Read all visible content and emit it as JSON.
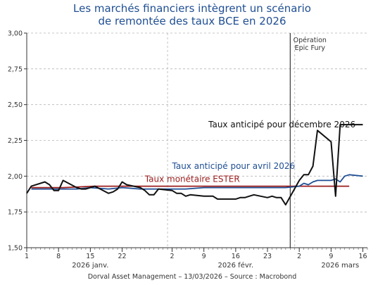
{
  "chart_data": {
    "type": "line",
    "title_lines": [
      "Les marchés financiers intègrent un scénario",
      "de remontée des taux BCE en 2026"
    ],
    "footer": "Dorval Asset Management – 13/03/2026 –    Source : Macrobond",
    "x_range": [
      "2026-01-01",
      "2026-03-17"
    ],
    "x_ticks": [
      {
        "date": "2026-01-01",
        "label": "1"
      },
      {
        "date": "2026-01-08",
        "label": "8"
      },
      {
        "date": "2026-01-15",
        "label": "15"
      },
      {
        "date": "2026-01-22",
        "label": "22"
      },
      {
        "date": "2026-02-02",
        "label": "2"
      },
      {
        "date": "2026-02-09",
        "label": "9"
      },
      {
        "date": "2026-02-16",
        "label": "16"
      },
      {
        "date": "2026-02-23",
        "label": "23"
      },
      {
        "date": "2026-03-02",
        "label": "2"
      },
      {
        "date": "2026-03-09",
        "label": "9"
      },
      {
        "date": "2026-03-16",
        "label": "16"
      }
    ],
    "month_labels": [
      {
        "date": "2026-01-15",
        "label": "2026 janv."
      },
      {
        "date": "2026-02-16",
        "label": "2026 févr."
      },
      {
        "date": "2026-03-11",
        "label": "2026 mars"
      }
    ],
    "month_separators": [
      "2026-02-01",
      "2026-03-01"
    ],
    "ylim": [
      1.5,
      3.0
    ],
    "y_ticks": [
      "1,50",
      "1,75",
      "2,00",
      "2,25",
      "2,50",
      "2,75",
      "3,00"
    ],
    "grid": true,
    "event": {
      "date": "2026-02-28",
      "label_lines": [
        "Opération",
        "Epic Fury"
      ]
    },
    "series": [
      {
        "name": "Taux monétaire ESTER",
        "color": "#9b1c1c",
        "label_anchor": {
          "date": "2026-01-27",
          "value": 1.96
        },
        "points": [
          [
            "2026-01-02",
            1.92
          ],
          [
            "2026-01-09",
            1.92
          ],
          [
            "2026-01-16",
            1.93
          ],
          [
            "2026-01-23",
            1.93
          ],
          [
            "2026-01-30",
            1.93
          ],
          [
            "2026-02-06",
            1.93
          ],
          [
            "2026-02-13",
            1.93
          ],
          [
            "2026-02-20",
            1.93
          ],
          [
            "2026-02-27",
            1.93
          ],
          [
            "2026-03-06",
            1.93
          ],
          [
            "2026-03-13",
            1.93
          ]
        ]
      },
      {
        "name": "Taux anticipé pour avril 2026",
        "color": "#1f4e93",
        "label_anchor": {
          "date": "2026-02-02",
          "value": 2.05
        },
        "points": [
          [
            "2026-01-02",
            1.91
          ],
          [
            "2026-01-05",
            1.91
          ],
          [
            "2026-01-08",
            1.91
          ],
          [
            "2026-01-12",
            1.91
          ],
          [
            "2026-01-15",
            1.92
          ],
          [
            "2026-01-19",
            1.91
          ],
          [
            "2026-01-22",
            1.92
          ],
          [
            "2026-01-26",
            1.91
          ],
          [
            "2026-01-29",
            1.91
          ],
          [
            "2026-02-02",
            1.91
          ],
          [
            "2026-02-05",
            1.91
          ],
          [
            "2026-02-09",
            1.92
          ],
          [
            "2026-02-12",
            1.92
          ],
          [
            "2026-02-16",
            1.92
          ],
          [
            "2026-02-19",
            1.92
          ],
          [
            "2026-02-23",
            1.92
          ],
          [
            "2026-02-26",
            1.92
          ],
          [
            "2026-02-27",
            1.92
          ],
          [
            "2026-03-02",
            1.93
          ],
          [
            "2026-03-03",
            1.95
          ],
          [
            "2026-03-04",
            1.94
          ],
          [
            "2026-03-05",
            1.96
          ],
          [
            "2026-03-06",
            1.97
          ],
          [
            "2026-03-09",
            1.97
          ],
          [
            "2026-03-10",
            1.98
          ],
          [
            "2026-03-11",
            1.96
          ],
          [
            "2026-03-12",
            2.0
          ],
          [
            "2026-03-13",
            2.01
          ],
          [
            "2026-03-16",
            2.0
          ]
        ]
      },
      {
        "name": "Taux anticipé pour décembre 2026",
        "color": "#111111",
        "label_anchor": {
          "date": "2026-02-10",
          "value": 2.34
        },
        "points": [
          [
            "2026-01-01",
            1.88
          ],
          [
            "2026-01-02",
            1.93
          ],
          [
            "2026-01-05",
            1.96
          ],
          [
            "2026-01-06",
            1.94
          ],
          [
            "2026-01-07",
            1.9
          ],
          [
            "2026-01-08",
            1.9
          ],
          [
            "2026-01-09",
            1.97
          ],
          [
            "2026-01-12",
            1.92
          ],
          [
            "2026-01-13",
            1.91
          ],
          [
            "2026-01-14",
            1.91
          ],
          [
            "2026-01-15",
            1.92
          ],
          [
            "2026-01-16",
            1.93
          ],
          [
            "2026-01-19",
            1.88
          ],
          [
            "2026-01-20",
            1.89
          ],
          [
            "2026-01-21",
            1.91
          ],
          [
            "2026-01-22",
            1.96
          ],
          [
            "2026-01-23",
            1.94
          ],
          [
            "2026-01-26",
            1.92
          ],
          [
            "2026-01-27",
            1.9
          ],
          [
            "2026-01-28",
            1.87
          ],
          [
            "2026-01-29",
            1.87
          ],
          [
            "2026-01-30",
            1.91
          ],
          [
            "2026-02-02",
            1.9
          ],
          [
            "2026-02-03",
            1.88
          ],
          [
            "2026-02-04",
            1.88
          ],
          [
            "2026-02-05",
            1.86
          ],
          [
            "2026-02-06",
            1.87
          ],
          [
            "2026-02-09",
            1.86
          ],
          [
            "2026-02-10",
            1.86
          ],
          [
            "2026-02-11",
            1.86
          ],
          [
            "2026-02-12",
            1.84
          ],
          [
            "2026-02-13",
            1.84
          ],
          [
            "2026-02-16",
            1.84
          ],
          [
            "2026-02-17",
            1.85
          ],
          [
            "2026-02-18",
            1.85
          ],
          [
            "2026-02-19",
            1.86
          ],
          [
            "2026-02-20",
            1.87
          ],
          [
            "2026-02-23",
            1.85
          ],
          [
            "2026-02-24",
            1.86
          ],
          [
            "2026-02-25",
            1.85
          ],
          [
            "2026-02-26",
            1.85
          ],
          [
            "2026-02-27",
            1.8
          ],
          [
            "2026-03-02",
            1.97
          ],
          [
            "2026-03-03",
            2.01
          ],
          [
            "2026-03-04",
            2.01
          ],
          [
            "2026-03-05",
            2.07
          ],
          [
            "2026-03-06",
            2.32
          ],
          [
            "2026-03-09",
            2.24
          ],
          [
            "2026-03-10",
            1.86
          ],
          [
            "2026-03-11",
            2.36
          ],
          [
            "2026-03-12",
            2.36
          ],
          [
            "2026-03-13",
            2.36
          ],
          [
            "2026-03-16",
            2.36
          ]
        ]
      }
    ]
  }
}
